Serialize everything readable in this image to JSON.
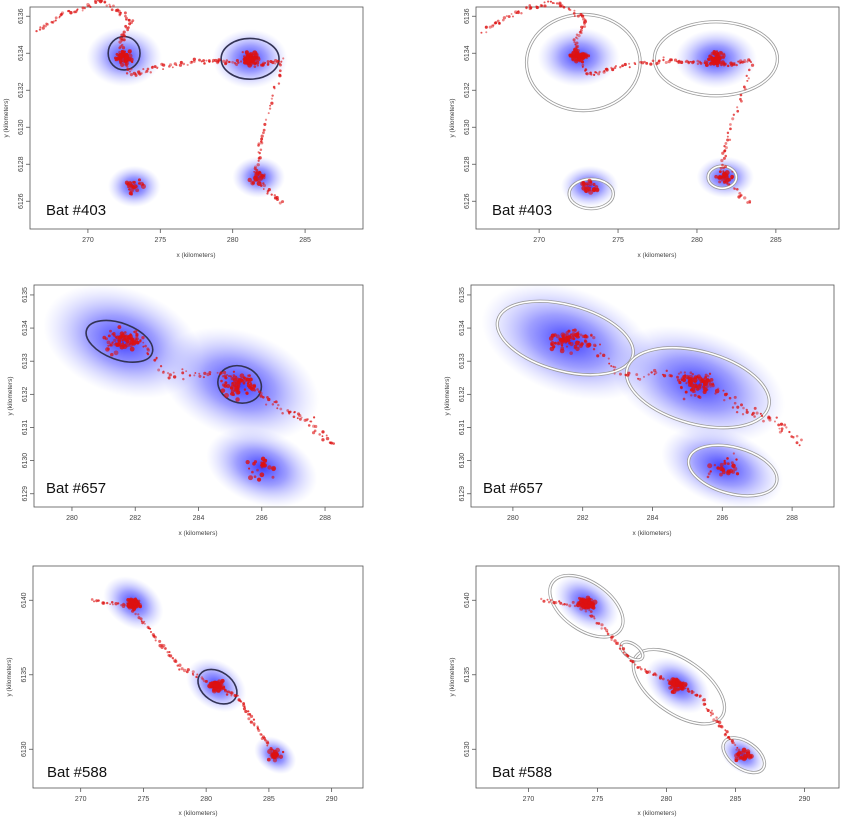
{
  "colors": {
    "utilization": "#1a1aff",
    "fix": "#dd1111",
    "contour": "#9a9a9a"
  },
  "chart_data": [
    {
      "type": "scatter",
      "panel": "403-left",
      "label": "Bat #403",
      "xlabel": "x (kilometers)",
      "ylabel": "y (kilometers)",
      "xlim": [
        266,
        289
      ],
      "ylim": [
        6124.5,
        6136.5
      ],
      "xticks": [
        270,
        275,
        280,
        285
      ],
      "yticks": [
        6126,
        6128,
        6130,
        6132,
        6134,
        6136
      ],
      "centers": [
        [
          272.5,
          6133.8
        ],
        [
          281.2,
          6133.7
        ],
        [
          273.2,
          6126.8
        ],
        [
          281.8,
          6127.3
        ]
      ],
      "path": [
        [
          266.5,
          6135.2
        ],
        [
          268.5,
          6136.2
        ],
        [
          271,
          6136.8
        ],
        [
          273,
          6135.8
        ],
        [
          272.2,
          6134.6
        ],
        [
          273,
          6132.8
        ],
        [
          275,
          6133.3
        ],
        [
          278,
          6133.6
        ],
        [
          280,
          6133.5
        ],
        [
          282,
          6133.4
        ],
        [
          283.5,
          6133.6
        ],
        [
          282,
          6129.5
        ],
        [
          281.5,
          6127.3
        ],
        [
          283.5,
          6125.8
        ]
      ],
      "contours": [],
      "core": [
        [
          272.5,
          6134.0,
          1.1,
          0.9
        ],
        [
          281.2,
          6133.7,
          2,
          1.1
        ]
      ]
    },
    {
      "type": "scatter",
      "panel": "403-right",
      "label": "Bat #403",
      "xlabel": "x (kilometers)",
      "ylabel": "y (kilometers)",
      "xlim": [
        266,
        289
      ],
      "ylim": [
        6124.5,
        6136.5
      ],
      "xticks": [
        270,
        275,
        280,
        285
      ],
      "yticks": [
        6126,
        6128,
        6130,
        6132,
        6134,
        6136
      ],
      "centers": [
        [
          272.5,
          6133.8
        ],
        [
          281.2,
          6133.7
        ],
        [
          273.2,
          6126.8
        ],
        [
          281.8,
          6127.3
        ]
      ],
      "path": [
        [
          266.5,
          6135.2
        ],
        [
          268.5,
          6136.2
        ],
        [
          271,
          6136.8
        ],
        [
          273,
          6135.8
        ],
        [
          272.2,
          6134.6
        ],
        [
          273,
          6132.8
        ],
        [
          275,
          6133.3
        ],
        [
          278,
          6133.6
        ],
        [
          280,
          6133.5
        ],
        [
          282,
          6133.4
        ],
        [
          283.5,
          6133.6
        ],
        [
          282,
          6129.5
        ],
        [
          281.5,
          6127.3
        ],
        [
          283.5,
          6125.8
        ]
      ],
      "contours": [
        [
          272.8,
          6133.5,
          3.6,
          2.6
        ],
        [
          281.2,
          6133.7,
          3.9,
          2.0
        ],
        [
          273.3,
          6126.4,
          1.4,
          0.8
        ],
        [
          281.6,
          6127.3,
          0.9,
          0.6
        ]
      ],
      "core": []
    },
    {
      "type": "scatter",
      "panel": "657-left",
      "label": "Bat #657",
      "xlabel": "x (kilometers)",
      "ylabel": "y (kilometers)",
      "xlim": [
        278.8,
        289.2
      ],
      "ylim": [
        6128.6,
        6135.3
      ],
      "xticks": [
        280,
        282,
        284,
        286,
        288
      ],
      "yticks": [
        6129,
        6130,
        6131,
        6132,
        6133,
        6134,
        6135
      ],
      "centers": [
        [
          281.6,
          6133.6
        ],
        [
          285.3,
          6132.3
        ],
        [
          286,
          6129.8
        ]
      ],
      "path": [
        [
          281.2,
          6133.5
        ],
        [
          282,
          6133.9
        ],
        [
          283,
          6132.6
        ],
        [
          284.5,
          6132.6
        ],
        [
          285.5,
          6132.5
        ],
        [
          286.5,
          6131.6
        ],
        [
          287.5,
          6131.2
        ],
        [
          288.2,
          6130.5
        ]
      ],
      "contours": [],
      "core": [
        [
          281.5,
          6133.6,
          1.1,
          0.55
        ],
        [
          285.3,
          6132.3,
          0.7,
          0.55
        ]
      ]
    },
    {
      "type": "scatter",
      "panel": "657-right",
      "label": "Bat #657",
      "xlabel": "x (kilometers)",
      "ylabel": "y (kilometers)",
      "xlim": [
        278.8,
        289.2
      ],
      "ylim": [
        6128.6,
        6135.3
      ],
      "xticks": [
        280,
        282,
        284,
        286,
        288
      ],
      "yticks": [
        6129,
        6130,
        6131,
        6132,
        6133,
        6134,
        6135
      ],
      "centers": [
        [
          281.6,
          6133.6
        ],
        [
          285.3,
          6132.3
        ],
        [
          286,
          6129.8
        ]
      ],
      "path": [
        [
          281.2,
          6133.5
        ],
        [
          282,
          6133.9
        ],
        [
          283,
          6132.6
        ],
        [
          284.5,
          6132.6
        ],
        [
          285.5,
          6132.5
        ],
        [
          286.5,
          6131.6
        ],
        [
          287.5,
          6131.2
        ],
        [
          288.2,
          6130.5
        ]
      ],
      "contours": [
        [
          281.5,
          6133.7,
          2.0,
          1.0
        ],
        [
          285.3,
          6132.2,
          2.1,
          1.1
        ],
        [
          286.3,
          6129.7,
          1.3,
          0.7
        ]
      ],
      "core": []
    },
    {
      "type": "scatter",
      "panel": "588-left",
      "label": "Bat #588",
      "xlabel": "x (kilometers)",
      "ylabel": "y (kilometers)",
      "xlim": [
        266.2,
        292.5
      ],
      "ylim": [
        6127.4,
        6142.3
      ],
      "xticks": [
        270,
        275,
        280,
        285,
        290
      ],
      "yticks": [
        6130,
        6135,
        6140
      ],
      "centers": [
        [
          274.2,
          6139.8
        ],
        [
          280.8,
          6134.3
        ],
        [
          285.5,
          6129.6
        ]
      ],
      "path": [
        [
          271,
          6140
        ],
        [
          274,
          6139.6
        ],
        [
          276,
          6137.5
        ],
        [
          278,
          6135.5
        ],
        [
          280.8,
          6134.3
        ],
        [
          282.5,
          6133.5
        ],
        [
          284,
          6131.5
        ],
        [
          285.5,
          6129.6
        ]
      ],
      "contours": [],
      "core": [
        [
          280.9,
          6134.2,
          1.7,
          1.0
        ]
      ]
    },
    {
      "type": "scatter",
      "panel": "588-right",
      "label": "Bat #588",
      "xlabel": "x (kilometers)",
      "ylabel": "y (kilometers)",
      "xlim": [
        266.2,
        292.5
      ],
      "ylim": [
        6127.4,
        6142.3
      ],
      "xticks": [
        270,
        275,
        280,
        285,
        290
      ],
      "yticks": [
        6130,
        6135,
        6140
      ],
      "centers": [
        [
          274.2,
          6139.8
        ],
        [
          280.8,
          6134.3
        ],
        [
          285.5,
          6129.6
        ]
      ],
      "path": [
        [
          271,
          6140
        ],
        [
          274,
          6139.6
        ],
        [
          276,
          6137.5
        ],
        [
          278,
          6135.5
        ],
        [
          280.8,
          6134.3
        ],
        [
          282.5,
          6133.5
        ],
        [
          284,
          6131.5
        ],
        [
          285.5,
          6129.6
        ]
      ],
      "contours": [
        [
          274.2,
          6139.6,
          3.0,
          1.6
        ],
        [
          280.9,
          6134.2,
          3.8,
          1.8
        ],
        [
          285.6,
          6129.6,
          1.7,
          0.9
        ],
        [
          277.5,
          6136.6,
          0.9,
          0.45
        ]
      ],
      "core": []
    }
  ]
}
